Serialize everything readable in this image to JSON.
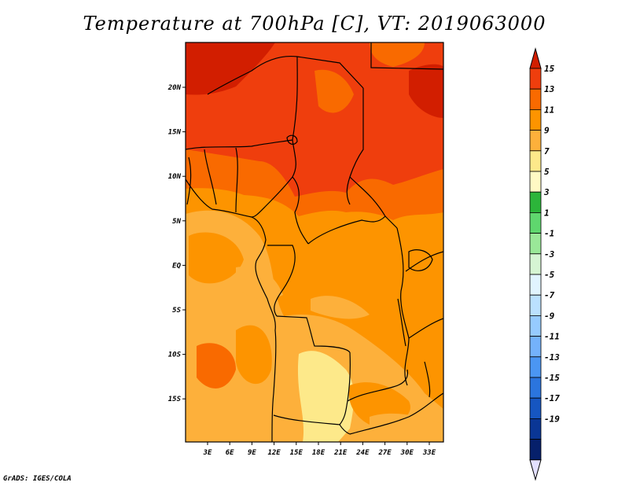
{
  "title": "Temperature at 700hPa [C], VT: 2019063000",
  "credit": "GrADS: IGES/COLA",
  "map": {
    "lon_labels": [
      "3E",
      "6E",
      "9E",
      "12E",
      "15E",
      "18E",
      "21E",
      "24E",
      "27E",
      "30E",
      "33E"
    ],
    "lat_labels": [
      "20N",
      "15N",
      "10N",
      "5N",
      "EQ",
      "5S",
      "10S",
      "15S"
    ]
  },
  "colorbar": {
    "labels": [
      "15",
      "13",
      "11",
      "9",
      "7",
      "5",
      "3",
      "1",
      "-1",
      "-3",
      "-5",
      "-7",
      "-9",
      "-11",
      "-13",
      "-15",
      "-17",
      "-19"
    ],
    "colors": [
      "#d21e00",
      "#ef3e0d",
      "#f96a00",
      "#fd9400",
      "#fdb03b",
      "#fde98a",
      "#fff9c4",
      "#2cb53a",
      "#5fd76e",
      "#9ae898",
      "#d6f5d3",
      "#e1f4ff",
      "#bbe1ff",
      "#96cbff",
      "#74b2fb",
      "#4b96f3",
      "#2b75de",
      "#1656c1",
      "#0a3695",
      "#06206b",
      "#e3e0ff"
    ]
  },
  "temperature_field": {
    "units": "C",
    "level": "700hPa",
    "valid_time": "2019063000"
  }
}
